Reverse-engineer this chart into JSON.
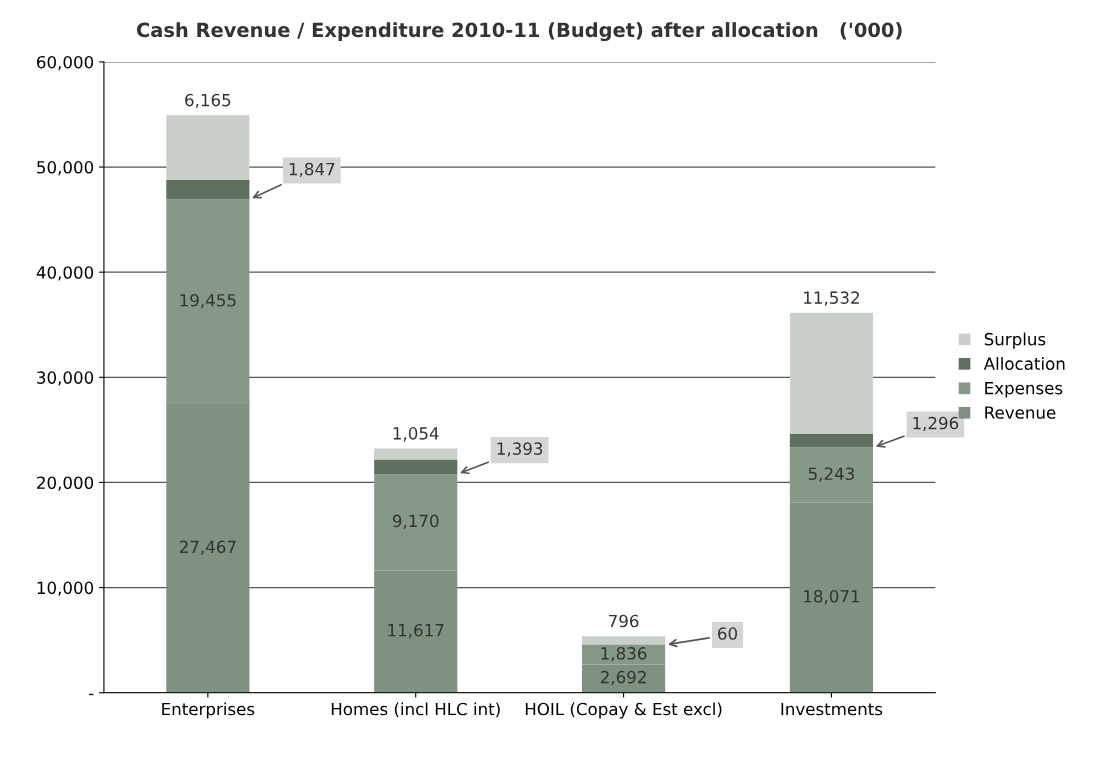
{
  "chart_data": {
    "type": "bar",
    "stacked": true,
    "title": "Cash Revenue / Expenditure 2010-11 (Budget) after allocation   ('000)",
    "categories": [
      "Enterprises",
      "Homes (incl HLC int)",
      "HOIL (Copay & Est excl)",
      "Investments"
    ],
    "series": [
      {
        "name": "Revenue",
        "color": "#7f9180",
        "values": [
          27467,
          11617,
          2692,
          18071
        ],
        "value_labels": [
          "27,467",
          "11,617",
          "2,692",
          "18,071"
        ]
      },
      {
        "name": "Expenses",
        "color": "#869886",
        "values": [
          19455,
          9170,
          1836,
          5243
        ],
        "value_labels": [
          "19,455",
          "9,170",
          "1,836",
          "5,243"
        ]
      },
      {
        "name": "Allocation",
        "color": "#5f705f",
        "values": [
          1847,
          1393,
          60,
          1296
        ],
        "value_labels": [
          "1,847",
          "1,393",
          "60",
          "1,296"
        ]
      },
      {
        "name": "Surplus",
        "color": "#c9d0c9",
        "values": [
          6165,
          1054,
          796,
          11532
        ],
        "value_labels": [
          "6,165",
          "1,054",
          "796",
          "11,532"
        ]
      }
    ],
    "ylim": [
      0,
      60000
    ],
    "yticks": [
      {
        "value": 0,
        "label": "-"
      },
      {
        "value": 10000,
        "label": "10,000"
      },
      {
        "value": 20000,
        "label": "20,000"
      },
      {
        "value": 30000,
        "label": "30,000"
      },
      {
        "value": 40000,
        "label": "40,000"
      },
      {
        "value": 50000,
        "label": "50,000"
      },
      {
        "value": 60000,
        "label": "60,000"
      }
    ],
    "grid": "y",
    "legend": "right"
  }
}
